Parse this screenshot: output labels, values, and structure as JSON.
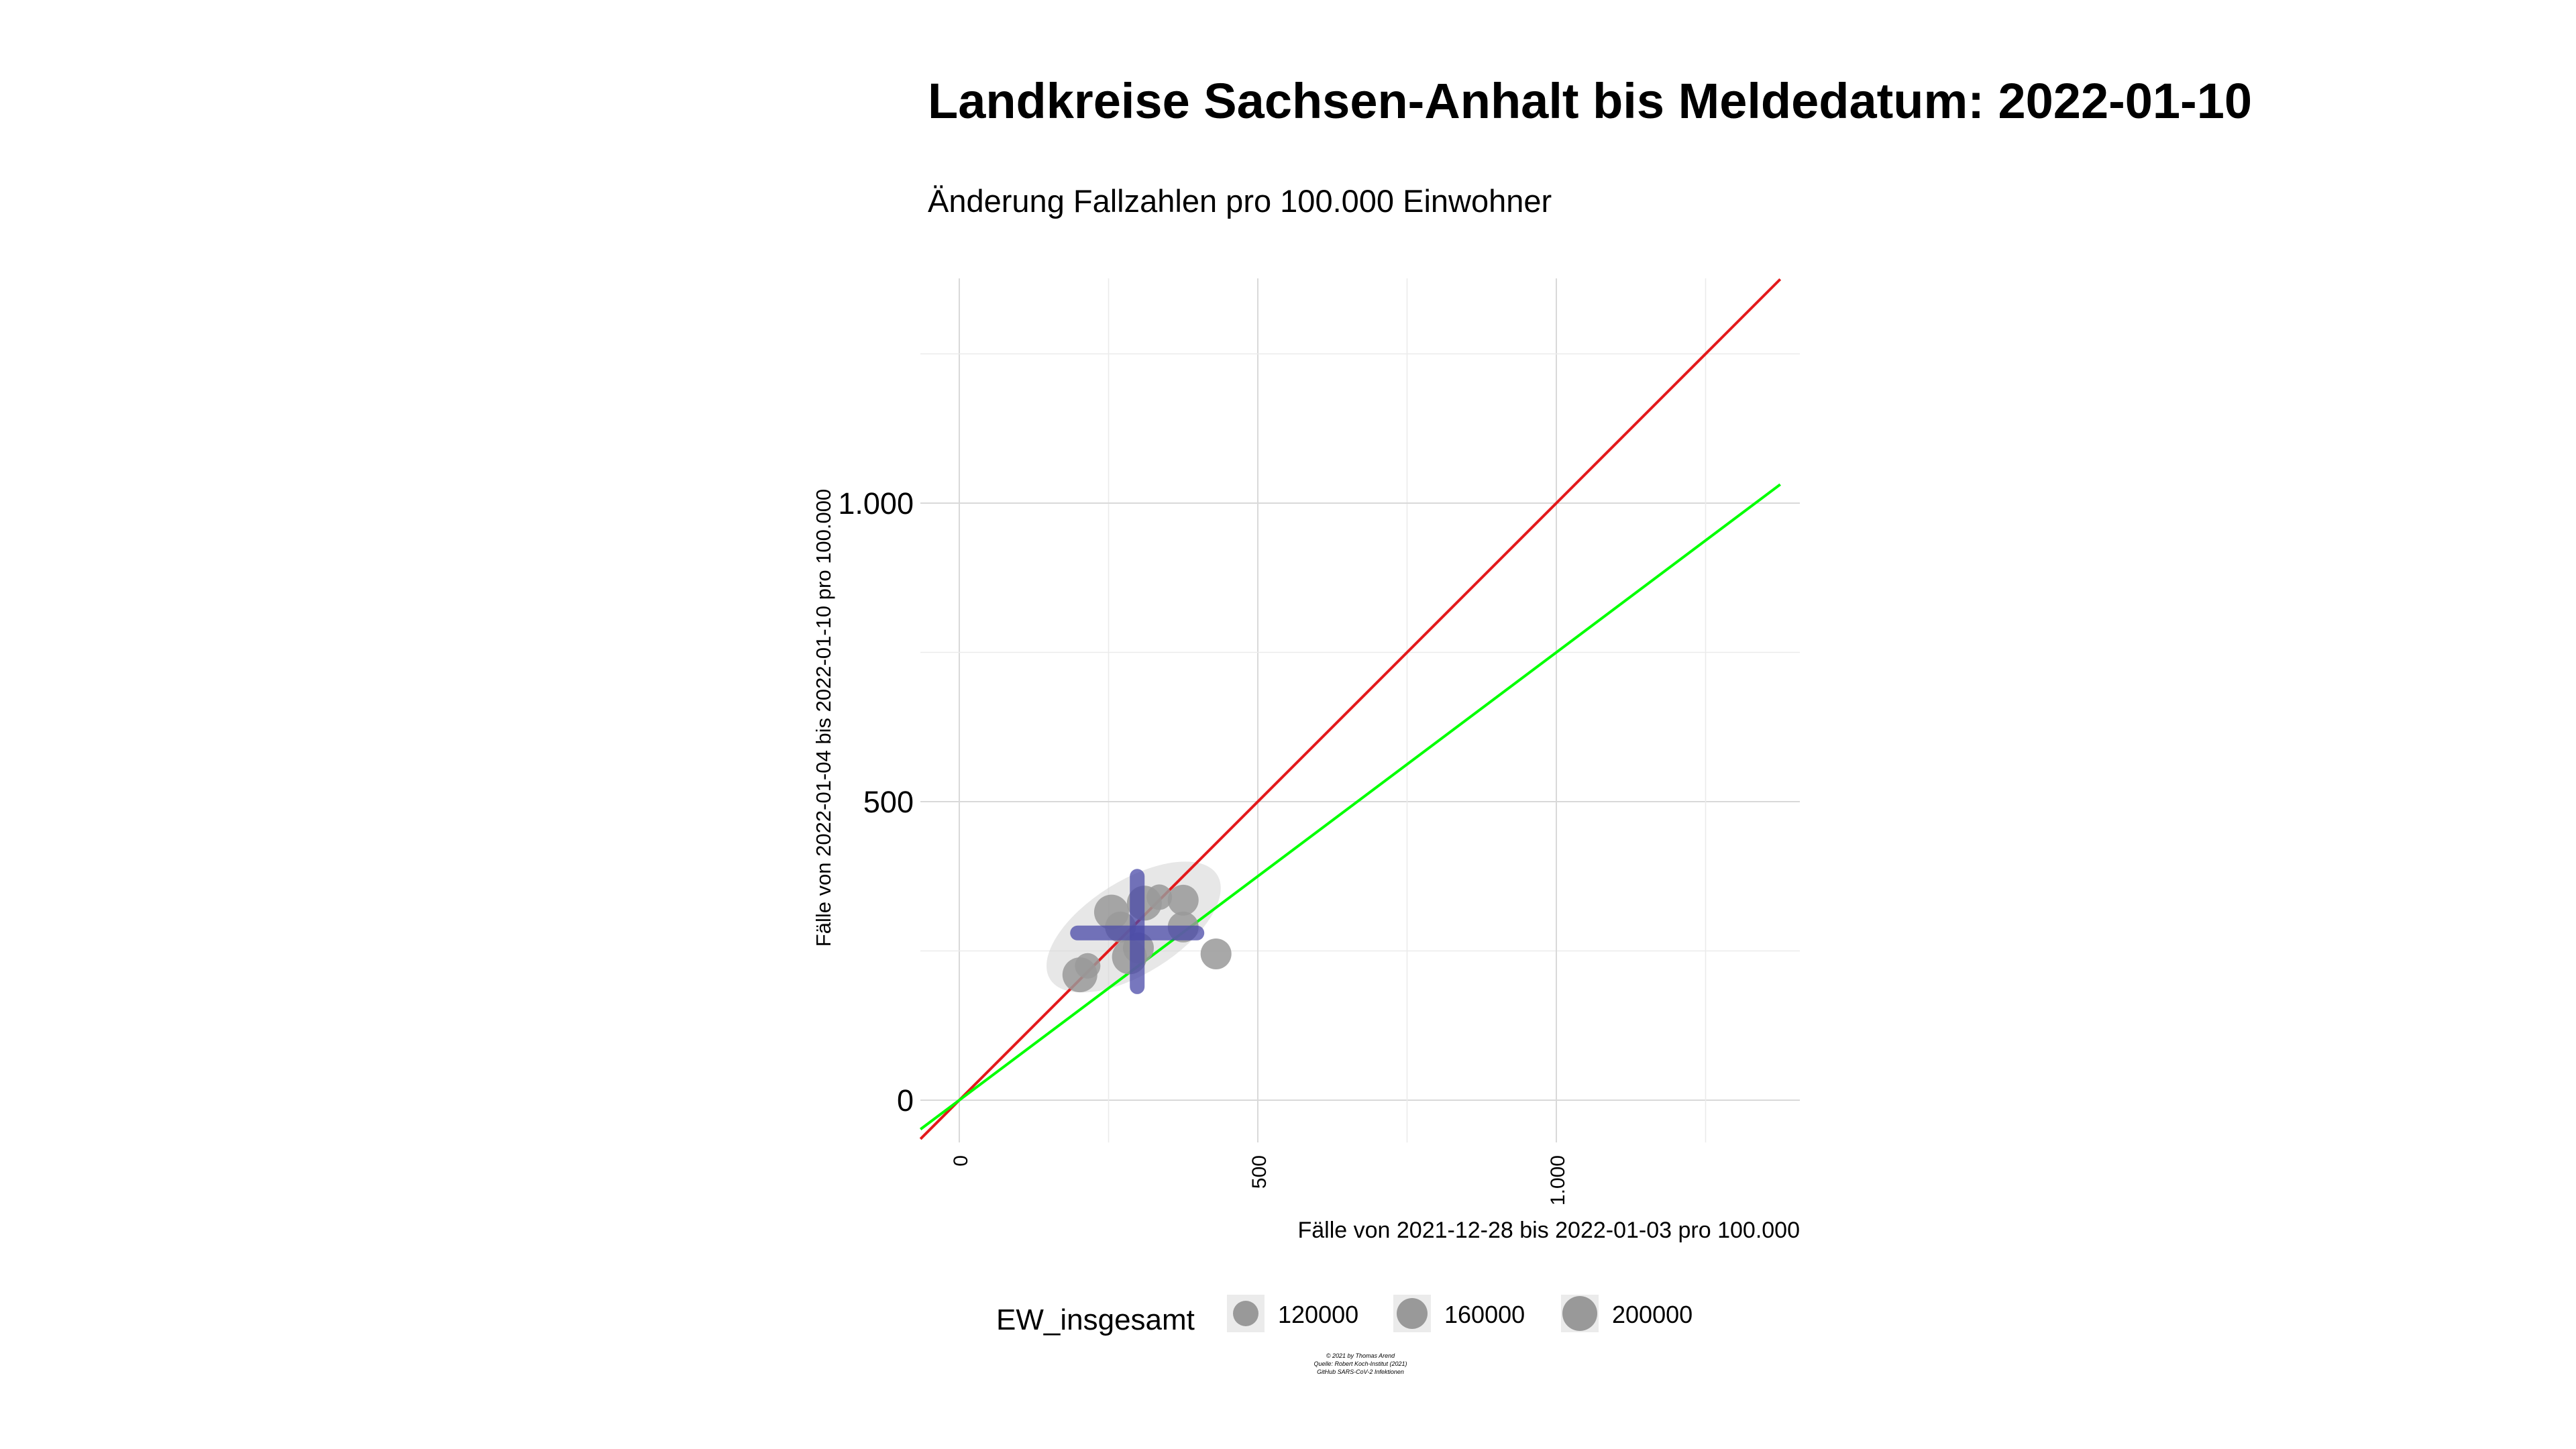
{
  "chart_data": {
    "type": "scatter",
    "title": "Landkreise Sachsen-Anhalt bis Meldedatum: 2022-01-10",
    "subtitle": "Änderung Fallzahlen pro 100.000 Einwohner",
    "xlabel": "Fälle von 2021-12-28 bis 2022-01-03 pro 100.000",
    "ylabel": "Fälle von 2022-01-04 bis 2022-01-10 pro 100.000",
    "xlim": [
      -65,
      1375
    ],
    "ylim": [
      -65,
      1375
    ],
    "x_ticks": [
      {
        "value": 0,
        "label": "0"
      },
      {
        "value": 500,
        "label": "500"
      },
      {
        "value": 1000,
        "label": "1.000"
      }
    ],
    "y_ticks": [
      {
        "value": 0,
        "label": "0"
      },
      {
        "value": 500,
        "label": "500"
      },
      {
        "value": 1000,
        "label": "1.000"
      }
    ],
    "grid": true,
    "points": [
      {
        "x": 202,
        "y": 210,
        "ew": 200000
      },
      {
        "x": 255,
        "y": 315,
        "ew": 200000
      },
      {
        "x": 270,
        "y": 290,
        "ew": 160000
      },
      {
        "x": 285,
        "y": 240,
        "ew": 200000
      },
      {
        "x": 300,
        "y": 255,
        "ew": 160000
      },
      {
        "x": 310,
        "y": 330,
        "ew": 200000
      },
      {
        "x": 335,
        "y": 340,
        "ew": 120000
      },
      {
        "x": 375,
        "y": 335,
        "ew": 160000
      },
      {
        "x": 375,
        "y": 290,
        "ew": 160000
      },
      {
        "x": 430,
        "y": 245,
        "ew": 160000
      },
      {
        "x": 215,
        "y": 225,
        "ew": 120000
      }
    ],
    "mean": {
      "x": 298,
      "y": 280
    },
    "sd_x": [
      198,
      398
    ],
    "sd_y": [
      190,
      375
    ],
    "ellipse": {
      "cx": 292,
      "cy": 290,
      "rx": 165,
      "ry": 78,
      "angle_deg": -32
    },
    "reference_lines": [
      {
        "name": "slope-1",
        "slope": 1.0,
        "color": "#e31a1c"
      },
      {
        "name": "slope-0.75",
        "slope": 0.75,
        "color": "#00ff00"
      }
    ],
    "legend": {
      "title": "EW_insgesamt",
      "position": "bottom",
      "entries": [
        {
          "label": "120000",
          "ew": 120000
        },
        {
          "label": "160000",
          "ew": 160000
        },
        {
          "label": "200000",
          "ew": 200000
        }
      ]
    },
    "point_color": "#999999",
    "cross_color": "#4a4aa8"
  },
  "credits": [
    "© 2021 by Thomas Arend",
    "Quelle: Robert Koch-Institut (2021)",
    "GitHub SARS-CoV-2 Infektionen"
  ]
}
